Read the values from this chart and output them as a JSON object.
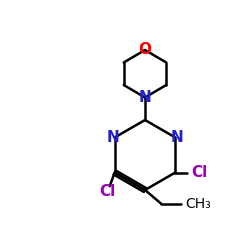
{
  "bg_color": "#ffffff",
  "line_color": "#000000",
  "N_color": "#2222cc",
  "O_color": "#ff0000",
  "Cl_color": "#9900bb",
  "line_width": 1.8,
  "font_size": 11,
  "small_font_size": 10,
  "xlim": [
    0,
    10
  ],
  "ylim": [
    0,
    10
  ]
}
